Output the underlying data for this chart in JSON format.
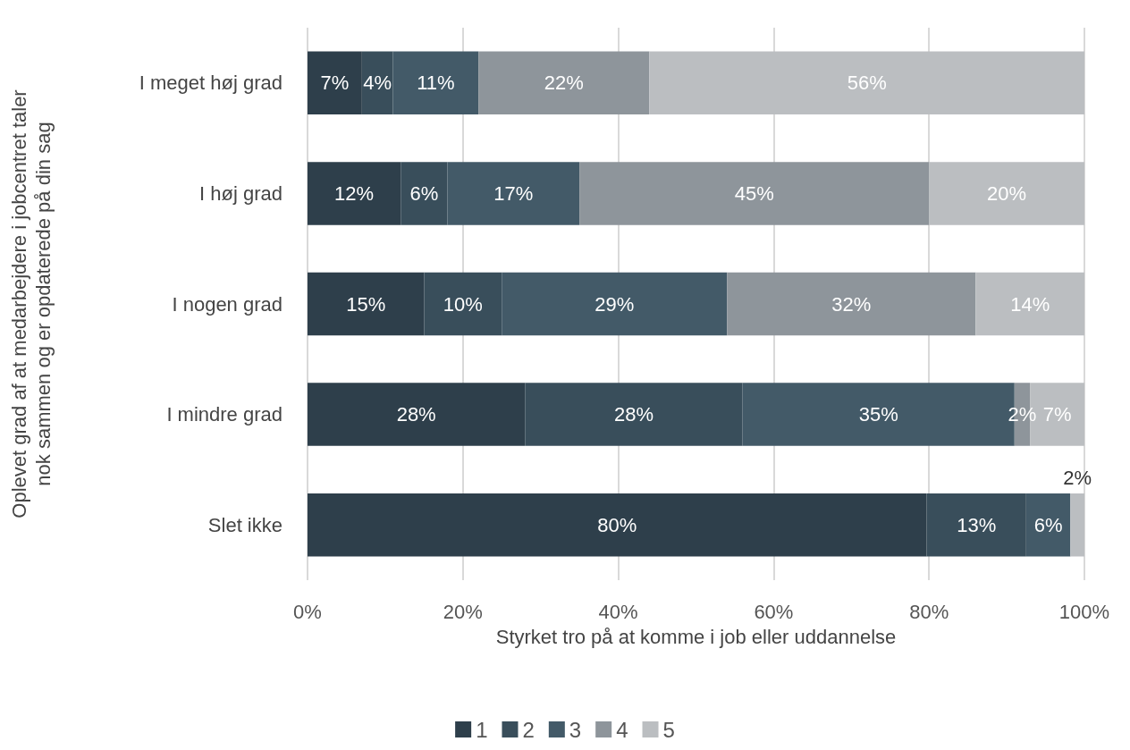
{
  "chart_data": {
    "type": "bar",
    "orientation": "horizontal",
    "stacked": true,
    "xlabel": "Styrket tro på at komme i job eller uddannelse",
    "ylabel": "Oplevet grad af at medarbejdere i jobcentret taler nok sammen og er opdaterede på din sag",
    "categories": [
      "I meget høj grad",
      "I høj grad",
      "I nogen grad",
      "I mindre grad",
      "Slet ikke"
    ],
    "series": [
      {
        "name": "1",
        "color": "#2e3f4b",
        "values": [
          7,
          12,
          15,
          28,
          79.7
        ],
        "value_labels": [
          "7%",
          "12%",
          "15%",
          "28%",
          "80%"
        ]
      },
      {
        "name": "2",
        "color": "#394e5b",
        "values": [
          4,
          6,
          10,
          28,
          12.8
        ],
        "value_labels": [
          "4%",
          "6%",
          "10%",
          "28%",
          "13%"
        ]
      },
      {
        "name": "3",
        "color": "#435a68",
        "values": [
          11,
          17,
          29,
          35,
          5.7
        ],
        "value_labels": [
          "11%",
          "17%",
          "29%",
          "35%",
          "6%"
        ]
      },
      {
        "name": "4",
        "color": "#8e959b",
        "values": [
          22,
          45,
          32,
          2,
          null
        ],
        "value_labels": [
          "22%",
          "45%",
          "32%",
          "2%",
          null
        ]
      },
      {
        "name": "5",
        "color": "#bbbec1",
        "values": [
          56,
          20,
          14,
          7,
          1.8
        ],
        "value_labels": [
          "56%",
          "20%",
          "14%",
          "7%",
          "2%"
        ]
      }
    ],
    "xlim": [
      0,
      100
    ],
    "xticks": [
      {
        "value": 0,
        "label": "0%"
      },
      {
        "value": 20,
        "label": "20%"
      },
      {
        "value": 40,
        "label": "40%"
      },
      {
        "value": 60,
        "label": "60%"
      },
      {
        "value": 80,
        "label": "80%"
      },
      {
        "value": 100,
        "label": "100%"
      }
    ],
    "grid": "x",
    "legend": "bottom"
  }
}
